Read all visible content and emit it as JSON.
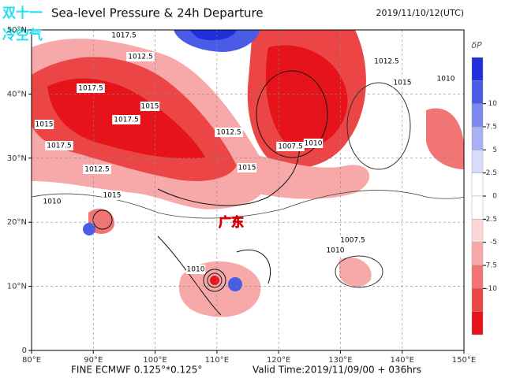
{
  "header": {
    "title": "Sea-level Pressure & 24h Departure",
    "time": "2019/11/10/12(UTC)"
  },
  "overlay": {
    "line1": "双十一",
    "line2": "冷空气",
    "region": "广东"
  },
  "map": {
    "xlim": [
      80,
      150
    ],
    "ylim": [
      0,
      50
    ],
    "xticks": [
      {
        "value": 80,
        "label": "80°E"
      },
      {
        "value": 90,
        "label": "90°E"
      },
      {
        "value": 100,
        "label": "100°E"
      },
      {
        "value": 110,
        "label": "110°E"
      },
      {
        "value": 120,
        "label": "120°E"
      },
      {
        "value": 130,
        "label": "130°E"
      },
      {
        "value": 140,
        "label": "140°E"
      },
      {
        "value": 150,
        "label": "150°E"
      }
    ],
    "yticks": [
      0,
      {
        "value": 10,
        "label": "10°N"
      },
      {
        "value": 20,
        "label": "20°N"
      },
      {
        "value": 30,
        "label": "30°N"
      },
      {
        "value": 40,
        "label": "40°N"
      },
      {
        "value": 50,
        "label": "50°N"
      }
    ],
    "contour_labels": [
      "1017.5",
      "1012.5",
      "1017.5",
      "1015",
      "1017.5",
      "1015",
      "1017.5",
      "1012.5",
      "1015",
      "1012.5",
      "1007.5",
      "1010",
      "1012.5",
      "1015",
      "1010",
      "1010",
      "1007.5",
      "1010",
      "1015",
      "1010"
    ]
  },
  "colorbar": {
    "label": "δP",
    "ticks": [
      10,
      7.5,
      5,
      2.5,
      0,
      -2.5,
      -5,
      -7.5,
      -10
    ],
    "colors": [
      "#1f2fd9",
      "#4a5ce6",
      "#7b88ee",
      "#a9b1f5",
      "#d8dcfb",
      "#ffffff",
      "#ffffff",
      "#fcd7d7",
      "#f7a9a9",
      "#f27575",
      "#ec4545",
      "#e6141a"
    ]
  },
  "footer": {
    "source": "FINE ECMWF 0.125°*0.125°",
    "valid": "Valid Time:2019/11/09/00 + 036hrs"
  }
}
